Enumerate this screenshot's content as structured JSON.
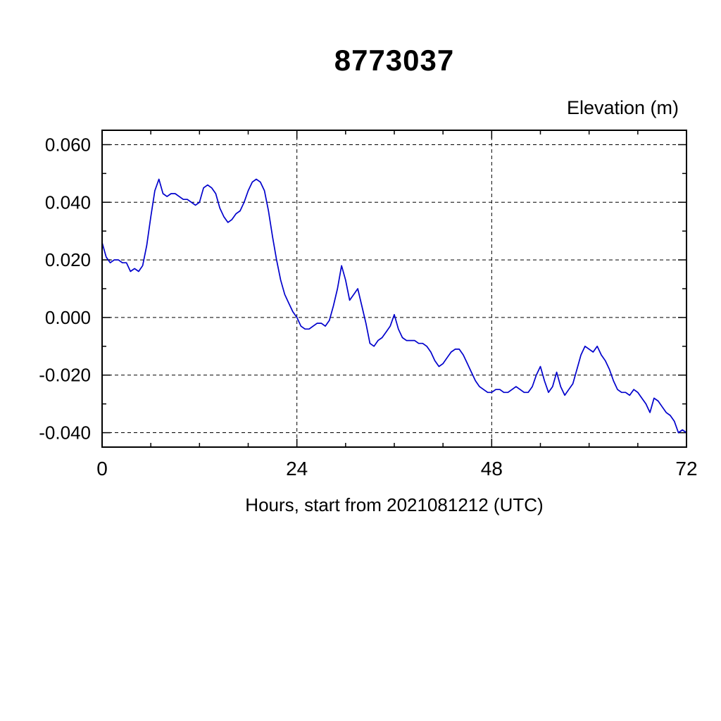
{
  "chart_data": {
    "type": "line",
    "title": "8773037",
    "ylabel": "Elevation (m)",
    "xlabel": "Hours, start from 2021081212 (UTC)",
    "line_color": "#0000cc",
    "grid": true,
    "legend": "none",
    "xlim": [
      0,
      72
    ],
    "ylim": [
      -0.045,
      0.065
    ],
    "xticks": [
      0,
      24,
      48,
      72
    ],
    "yticks": [
      -0.04,
      -0.02,
      0.0,
      0.02,
      0.04,
      0.06
    ],
    "x_minor_step": 6,
    "y_minor_step": 0.01,
    "x": [
      0,
      0.5,
      1,
      1.5,
      2,
      2.5,
      3,
      3.5,
      4,
      4.5,
      5,
      5.5,
      6,
      6.5,
      7,
      7.5,
      8,
      8.5,
      9,
      9.5,
      10,
      10.5,
      11,
      11.5,
      12,
      12.5,
      13,
      13.5,
      14,
      14.5,
      15,
      15.5,
      16,
      16.5,
      17,
      17.5,
      18,
      18.5,
      19,
      19.5,
      20,
      20.5,
      21,
      21.5,
      22,
      22.5,
      23,
      23.5,
      24,
      24.5,
      25,
      25.5,
      26,
      26.5,
      27,
      27.5,
      28,
      28.5,
      29,
      29.5,
      30,
      30.5,
      31,
      31.5,
      32,
      32.5,
      33,
      33.5,
      34,
      34.5,
      35,
      35.5,
      36,
      36.5,
      37,
      37.5,
      38,
      38.5,
      39,
      39.5,
      40,
      40.5,
      41,
      41.5,
      42,
      42.5,
      43,
      43.5,
      44,
      44.5,
      45,
      45.5,
      46,
      46.5,
      47,
      47.5,
      48,
      48.5,
      49,
      49.5,
      50,
      50.5,
      51,
      51.5,
      52,
      52.5,
      53,
      53.5,
      54,
      54.5,
      55,
      55.5,
      56,
      56.5,
      57,
      57.5,
      58,
      58.5,
      59,
      59.5,
      60,
      60.5,
      61,
      61.5,
      62,
      62.5,
      63,
      63.5,
      64,
      64.5,
      65,
      65.5,
      66,
      66.5,
      67,
      67.5,
      68,
      68.5,
      69,
      69.5,
      70,
      70.5,
      71,
      71.5,
      72
    ],
    "y": [
      0.026,
      0.021,
      0.019,
      0.02,
      0.02,
      0.019,
      0.019,
      0.016,
      0.017,
      0.016,
      0.018,
      0.025,
      0.035,
      0.044,
      0.048,
      0.043,
      0.042,
      0.043,
      0.043,
      0.042,
      0.041,
      0.041,
      0.04,
      0.039,
      0.04,
      0.045,
      0.046,
      0.045,
      0.043,
      0.038,
      0.035,
      0.033,
      0.034,
      0.036,
      0.037,
      0.04,
      0.044,
      0.047,
      0.048,
      0.047,
      0.044,
      0.037,
      0.028,
      0.02,
      0.013,
      0.008,
      0.005,
      0.002,
      0.0,
      -0.003,
      -0.004,
      -0.004,
      -0.003,
      -0.002,
      -0.002,
      -0.003,
      -0.001,
      0.004,
      0.01,
      0.018,
      0.013,
      0.006,
      0.008,
      0.01,
      0.004,
      -0.002,
      -0.009,
      -0.01,
      -0.008,
      -0.007,
      -0.005,
      -0.003,
      0.001,
      -0.004,
      -0.007,
      -0.008,
      -0.008,
      -0.008,
      -0.009,
      -0.009,
      -0.01,
      -0.012,
      -0.015,
      -0.017,
      -0.016,
      -0.014,
      -0.012,
      -0.011,
      -0.011,
      -0.013,
      -0.016,
      -0.019,
      -0.022,
      -0.024,
      -0.025,
      -0.026,
      -0.026,
      -0.025,
      -0.025,
      -0.026,
      -0.026,
      -0.025,
      -0.024,
      -0.025,
      -0.026,
      -0.026,
      -0.024,
      -0.02,
      -0.017,
      -0.022,
      -0.026,
      -0.024,
      -0.019,
      -0.024,
      -0.027,
      -0.025,
      -0.023,
      -0.018,
      -0.013,
      -0.01,
      -0.011,
      -0.012,
      -0.01,
      -0.013,
      -0.015,
      -0.018,
      -0.022,
      -0.025,
      -0.026,
      -0.026,
      -0.027,
      -0.025,
      -0.026,
      -0.028,
      -0.03,
      -0.033,
      -0.028,
      -0.029,
      -0.031,
      -0.033,
      -0.034,
      -0.036,
      -0.04,
      -0.039,
      -0.04
    ]
  }
}
